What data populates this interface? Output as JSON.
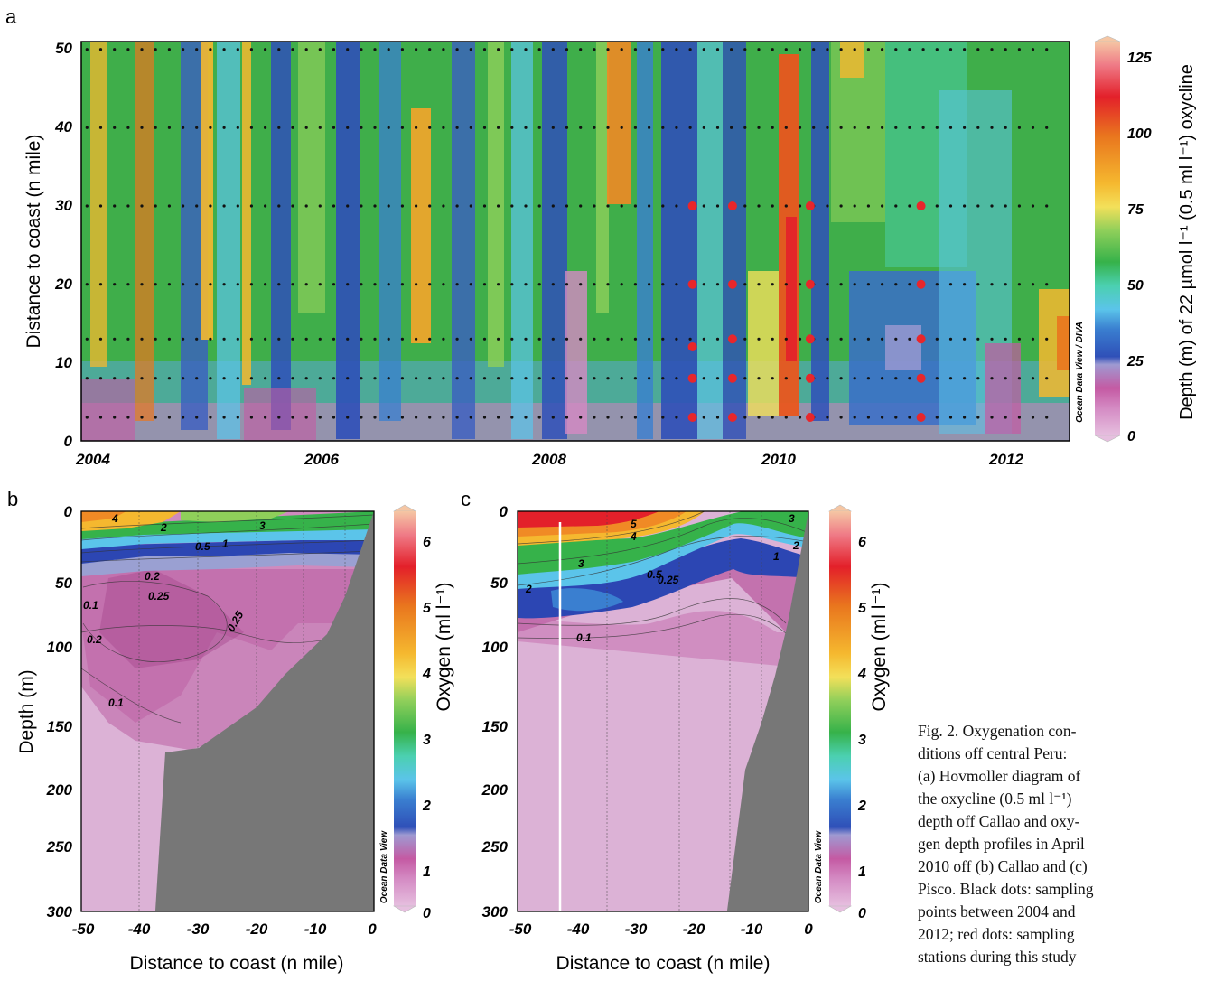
{
  "panels": {
    "a": {
      "letter": "a",
      "y_axis_label": "Distance to coast (n mile)",
      "y_ticks": [
        "0",
        "10",
        "20",
        "30",
        "40",
        "50"
      ],
      "y_tick_values": [
        0,
        10,
        20,
        30,
        40,
        50
      ],
      "x_ticks": [
        "2004",
        "2006",
        "2008",
        "2010",
        "2012"
      ],
      "x_tick_values": [
        2004,
        2006,
        2008,
        2010,
        2012
      ],
      "watermark": "Ocean Data View / DIVA",
      "colorbar_label": "Depth (m) of 22 µmol l⁻¹ (0.5 ml l⁻¹) oxycline",
      "colorbar_ticks": [
        "0",
        "25",
        "50",
        "75",
        "100",
        "125"
      ],
      "colorbar_values": [
        0,
        25,
        50,
        75,
        100,
        125
      ]
    },
    "b": {
      "letter": "b",
      "y_axis_label": "Depth (m)",
      "x_axis_label": "Distance to coast (n mile)",
      "y_ticks": [
        "0",
        "50",
        "100",
        "150",
        "200",
        "250",
        "300"
      ],
      "y_tick_values": [
        0,
        50,
        100,
        150,
        200,
        250,
        300
      ],
      "x_ticks": [
        "-50",
        "-40",
        "-30",
        "-20",
        "-10",
        "0"
      ],
      "x_tick_values": [
        -50,
        -40,
        -30,
        -20,
        -10,
        0
      ],
      "watermark": "Ocean Data View",
      "colorbar_label": "Oxygen (ml l⁻¹)",
      "colorbar_ticks": [
        "0",
        "1",
        "2",
        "3",
        "4",
        "5",
        "6"
      ],
      "colorbar_values": [
        0,
        1,
        2,
        3,
        4,
        5,
        6
      ],
      "contour_labels": [
        "4",
        "2",
        "3",
        "0.5",
        "1",
        "0.2",
        "0.25",
        "0.1",
        "0.2",
        "0.1"
      ]
    },
    "c": {
      "letter": "c",
      "y_axis_label": "Depth (m)",
      "x_axis_label": "Distance to coast (n mile)",
      "y_ticks": [
        "0",
        "50",
        "100",
        "150",
        "200",
        "250",
        "300"
      ],
      "y_tick_values": [
        0,
        50,
        100,
        150,
        200,
        250,
        300
      ],
      "x_ticks": [
        "-50",
        "-40",
        "-30",
        "-20",
        "-10",
        "0"
      ],
      "x_tick_values": [
        -50,
        -40,
        -30,
        -20,
        -10,
        0
      ],
      "watermark": "Ocean Data View",
      "colorbar_label": "Oxygen (ml l⁻¹)",
      "colorbar_ticks": [
        "0",
        "1",
        "2",
        "3",
        "4",
        "5",
        "6"
      ],
      "colorbar_values": [
        0,
        1,
        2,
        3,
        4,
        5,
        6
      ],
      "contour_labels": [
        "5",
        "4",
        "3",
        "2",
        "0.5",
        "0.25",
        "3",
        "2",
        "1",
        "0.1"
      ]
    }
  },
  "caption": {
    "lines": [
      "Fig. 2. Oxygenation con-",
      "ditions off central Peru:",
      "(a) Hovmoller diagram of",
      "the oxycline (0.5 ml l⁻¹)",
      "depth off Callao and oxy-",
      "gen depth profiles in April",
      "2010 off (b) Callao and (c)",
      "Pisco. Black dots: sampling",
      "points between 2004 and",
      "2012; red dots: sampling",
      "stations during this study"
    ]
  },
  "chart_data": [
    {
      "type": "heatmap",
      "panel": "a",
      "title": "",
      "xlabel": "",
      "ylabel": "Distance to coast (n mile)",
      "colorbar_label": "Depth (m) of 22 µmol l⁻¹ (0.5 ml l⁻¹) oxycline",
      "xlim": [
        2003.95,
        2012.6
      ],
      "ylim": [
        0,
        51
      ],
      "zlim": [
        0,
        130
      ],
      "grid": false,
      "station_distances": [
        3,
        8,
        13,
        20,
        30,
        40,
        50
      ],
      "study_stations": {
        "times": [
          2009.3,
          2009.65,
          2010.33,
          2011.3
        ],
        "distances": [
          [
            3,
            8,
            12,
            20,
            30
          ],
          [
            3,
            8,
            13,
            20,
            30
          ],
          [
            3,
            8,
            13,
            20,
            30
          ],
          [
            3,
            8,
            13,
            20,
            30
          ]
        ]
      },
      "approx_oxycline_depth_peaks": [
        {
          "time": 2004.5,
          "depth_m": 85
        },
        {
          "time": 2005.0,
          "depth_m": 90
        },
        {
          "time": 2005.6,
          "depth_m": 80
        },
        {
          "time": 2006.9,
          "depth_m": 95
        },
        {
          "time": 2008.7,
          "depth_m": 95
        },
        {
          "time": 2010.05,
          "depth_m": 110
        },
        {
          "time": 2012.55,
          "depth_m": 100
        }
      ]
    },
    {
      "type": "heatmap",
      "panel": "b",
      "title": "",
      "xlabel": "Distance to coast (n mile)",
      "ylabel": "Depth (m)",
      "colorbar_label": "Oxygen (ml l⁻¹)",
      "xlim": [
        -50,
        0
      ],
      "ylim": [
        300,
        0
      ],
      "zlim": [
        0,
        6.5
      ],
      "grid": false,
      "station_x": [
        -40,
        -30,
        -20,
        -12,
        -5
      ],
      "contour_levels": [
        0.1,
        0.2,
        0.25,
        0.5,
        1,
        2,
        3,
        4
      ],
      "bathymetry": [
        [
          -37,
          300
        ],
        [
          -36,
          181
        ],
        [
          -30,
          177
        ],
        [
          -20,
          147
        ],
        [
          -15,
          122
        ],
        [
          -8,
          94
        ],
        [
          -5,
          62
        ],
        [
          0,
          0
        ]
      ]
    },
    {
      "type": "heatmap",
      "panel": "c",
      "title": "",
      "xlabel": "Distance to coast (n mile)",
      "ylabel": "Depth (m)",
      "colorbar_label": "Oxygen (ml l⁻¹)",
      "xlim": [
        -50,
        0
      ],
      "ylim": [
        300,
        0
      ],
      "zlim": [
        0,
        6.5
      ],
      "grid": false,
      "station_x": [
        -43,
        -35,
        -23,
        -16,
        -11
      ],
      "contour_levels": [
        0.1,
        0.25,
        0.5,
        1,
        2,
        3,
        4,
        5
      ],
      "bathymetry": [
        [
          -14,
          300
        ],
        [
          -11,
          185
        ],
        [
          -8,
          128
        ],
        [
          -5,
          80
        ],
        [
          0,
          0
        ]
      ]
    }
  ]
}
